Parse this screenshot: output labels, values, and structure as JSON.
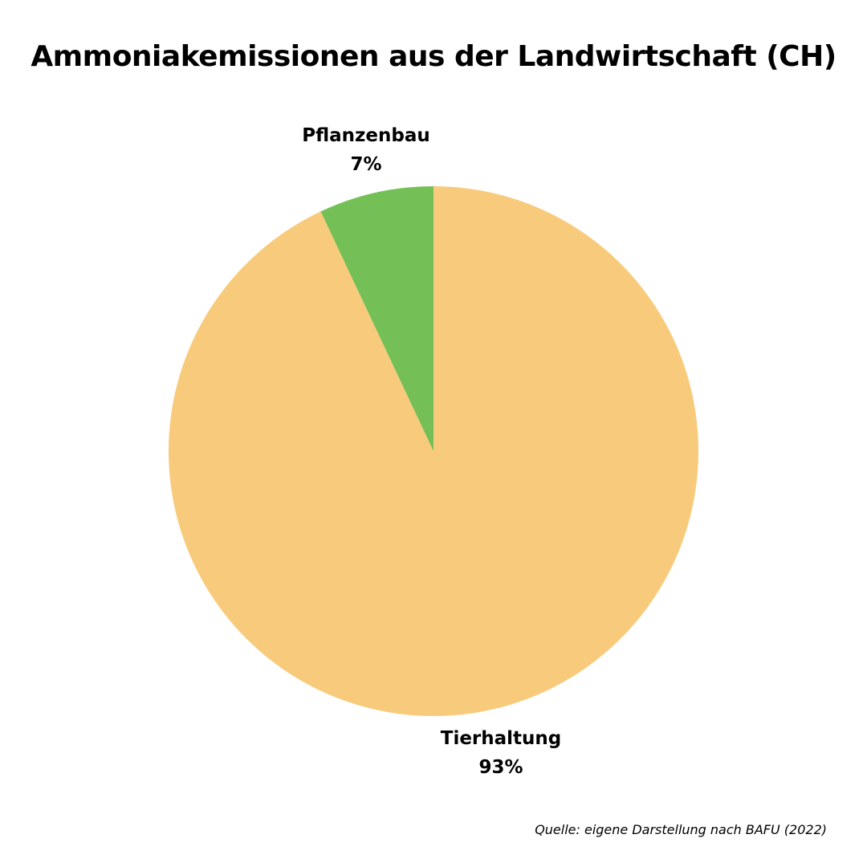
{
  "chart_data": {
    "type": "pie",
    "title": "Ammoniakemissionen aus der Landwirtschaft (CH)",
    "slices": [
      {
        "label": "Tierhaltung",
        "value": 93,
        "value_label": "93%",
        "color": "#F8CB7C"
      },
      {
        "label": "Pflanzenbau",
        "value": 7,
        "value_label": "7%",
        "color": "#74C056"
      }
    ]
  },
  "source_note": "Quelle: eigene Darstellung nach BAFU (2022)"
}
